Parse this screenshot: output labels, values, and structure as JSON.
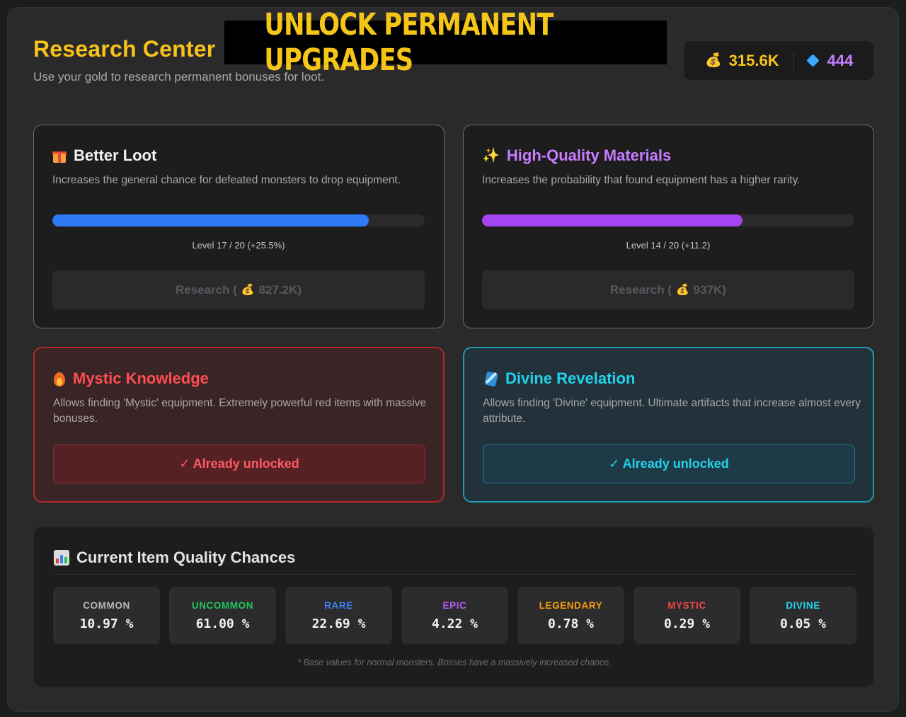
{
  "header": {
    "title": "Research Center",
    "subtitle": "Use your gold to research permanent bonuses for loot.",
    "banner": "UNLOCK PERMANENT UPGRADES"
  },
  "wallet": {
    "gold": "315.6K",
    "gems": "444",
    "gold_icon": "money-bag-icon",
    "gems_icon": "diamond-icon"
  },
  "upgrades": [
    {
      "title": "Better Loot",
      "icon": "gift-icon",
      "description": "Increases the general chance for defeated monsters to drop equipment.",
      "level_text": "Level 17 / 20 (+25.5%)",
      "progress": 0.85,
      "bar_color": "#2f7bf5",
      "title_color": "#f2f2f2",
      "button_label": "Research (",
      "button_cost": "827.2K)"
    },
    {
      "title": "High-Quality Materials",
      "icon": "sparkles-icon",
      "description": "Increases the probability that found equipment has a higher rarity.",
      "level_text": "Level 14 / 20 (+11.2)",
      "progress": 0.7,
      "bar_color": "#a445f2",
      "title_color": "#c77dff",
      "button_label": "Research (",
      "button_cost": "937K)"
    }
  ],
  "unlocks": [
    {
      "title": "Mystic Knowledge",
      "icon": "fire-icon",
      "description": "Allows finding 'Mystic' equipment. Extremely powerful red items with massive bonuses.",
      "status": "✓ Already unlocked",
      "title_color": "#ff4d52"
    },
    {
      "title": "Divine Revelation",
      "icon": "scroll-icon",
      "description": "Allows finding 'Divine' equipment. Ultimate artifacts that increase almost every attribute.",
      "status": "✓ Already unlocked",
      "title_color": "#22d3ee"
    }
  ],
  "quality": {
    "title": "Current Item Quality Chances",
    "icon": "bar-chart-icon",
    "footnote": "* Base values for normal monsters. Bosses have a massively increased chance.",
    "tiers": [
      {
        "label": "COMMON",
        "value": "10.97 %",
        "color": "#b9b9bc"
      },
      {
        "label": "UNCOMMON",
        "value": "61.00 %",
        "color": "#22c55e"
      },
      {
        "label": "RARE",
        "value": "22.69 %",
        "color": "#3b82f6"
      },
      {
        "label": "EPIC",
        "value": "4.22 %",
        "color": "#b65cf6"
      },
      {
        "label": "LEGENDARY",
        "value": "0.78 %",
        "color": "#f59e0b"
      },
      {
        "label": "MYSTIC",
        "value": "0.29 %",
        "color": "#ef4444"
      },
      {
        "label": "DIVINE",
        "value": "0.05 %",
        "color": "#22d3ee"
      }
    ]
  }
}
